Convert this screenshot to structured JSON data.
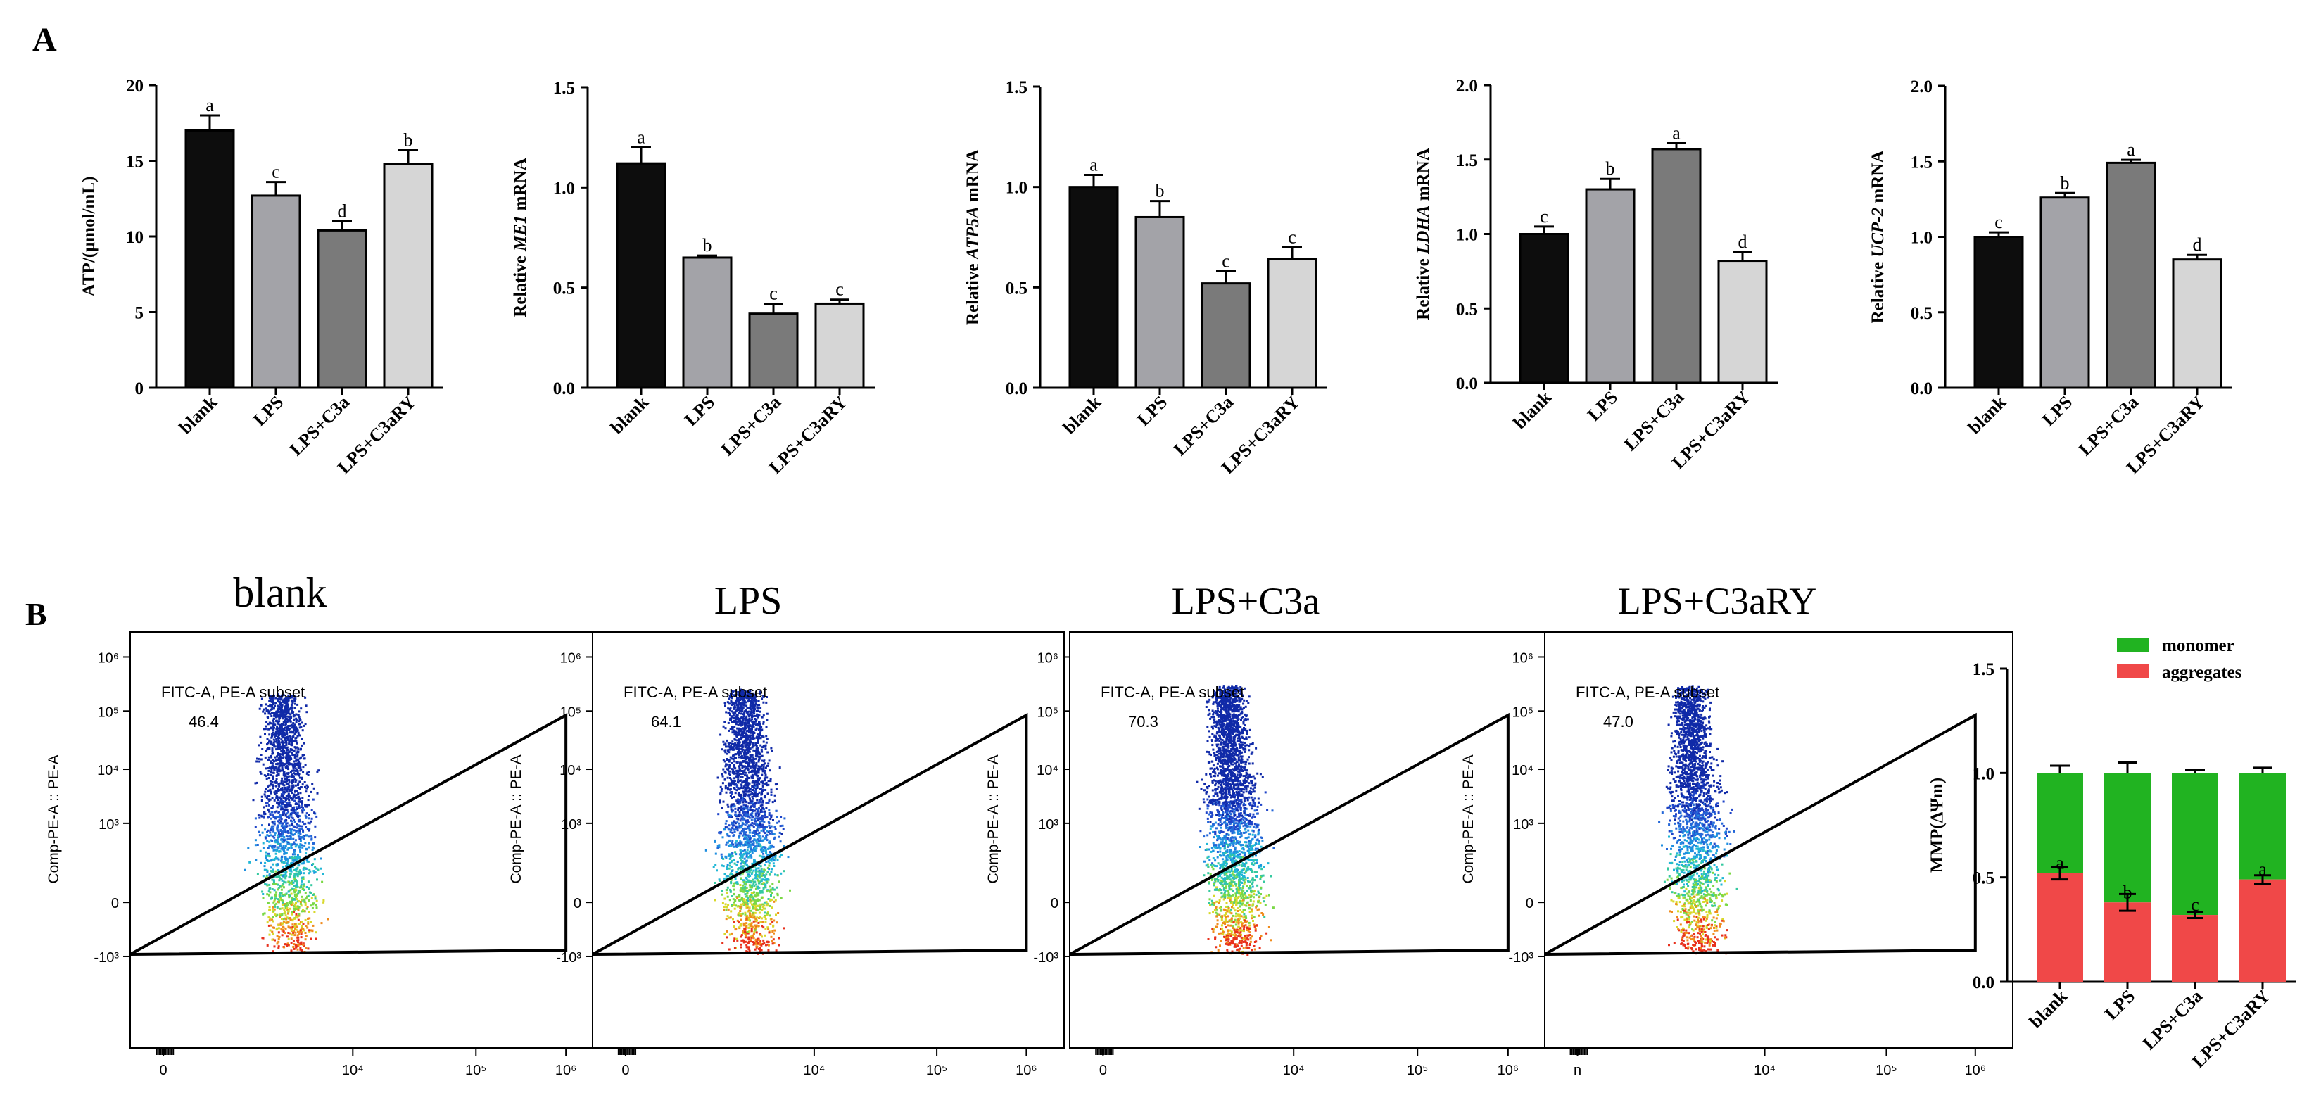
{
  "panel_labels": {
    "a": "A",
    "b": "B"
  },
  "colors": {
    "blank": "#0d0d0d",
    "LPS": "#a3a3a8",
    "LPS+C3a": "#7a7a7a",
    "LPS+C3aRY": "#d6d6d6",
    "monomer": "#21b321",
    "aggregates": "#f04848"
  },
  "chart_data": [
    {
      "type": "bar",
      "panel": "A",
      "categories": [
        "blank",
        "LPS",
        "LPS+C3a",
        "LPS+C3aRY"
      ],
      "values": [
        17.0,
        12.7,
        10.4,
        14.8
      ],
      "errors": [
        1.0,
        0.9,
        0.6,
        0.9
      ],
      "letters": [
        "a",
        "c",
        "d",
        "b"
      ],
      "ylabel": "ATP/(μmol/mL)",
      "ylim": [
        0,
        20
      ],
      "yticks": [
        "0",
        "5",
        "10",
        "15",
        "20"
      ]
    },
    {
      "type": "bar",
      "panel": "A",
      "categories": [
        "blank",
        "LPS",
        "LPS+C3a",
        "LPS+C3aRY"
      ],
      "values": [
        1.12,
        0.65,
        0.37,
        0.42
      ],
      "errors": [
        0.08,
        0.01,
        0.05,
        0.02
      ],
      "letters": [
        "a",
        "b",
        "c",
        "c"
      ],
      "ylabel": {
        "pre": "Relative ",
        "gene": "ME1",
        "post": " mRNA"
      },
      "ylim": [
        0,
        1.5
      ],
      "yticks": [
        "0.0",
        "0.5",
        "1.0",
        "1.5"
      ]
    },
    {
      "type": "bar",
      "panel": "A",
      "categories": [
        "blank",
        "LPS",
        "LPS+C3a",
        "LPS+C3aRY"
      ],
      "values": [
        1.0,
        0.85,
        0.52,
        0.64
      ],
      "errors": [
        0.06,
        0.08,
        0.06,
        0.06
      ],
      "letters": [
        "a",
        "b",
        "c",
        "c"
      ],
      "ylabel": {
        "pre": "Relative ",
        "gene": "ATP5A",
        "post": " mRNA"
      },
      "ylim": [
        0,
        1.5
      ],
      "yticks": [
        "0.0",
        "0.5",
        "1.0",
        "1.5"
      ]
    },
    {
      "type": "bar",
      "panel": "A",
      "categories": [
        "blank",
        "LPS",
        "LPS+C3a",
        "LPS+C3aRY"
      ],
      "values": [
        1.0,
        1.3,
        1.57,
        0.82
      ],
      "errors": [
        0.05,
        0.07,
        0.04,
        0.06
      ],
      "letters": [
        "c",
        "b",
        "a",
        "d"
      ],
      "ylabel": {
        "pre": "Relative ",
        "gene": "LDHA",
        "post": " mRNA"
      },
      "ylim": [
        0,
        2.0
      ],
      "yticks": [
        "0.0",
        "0.5",
        "1.0",
        "1.5",
        "2.0"
      ]
    },
    {
      "type": "bar",
      "panel": "A",
      "categories": [
        "blank",
        "LPS",
        "LPS+C3a",
        "LPS+C3aRY"
      ],
      "values": [
        1.0,
        1.26,
        1.49,
        0.85
      ],
      "errors": [
        0.03,
        0.03,
        0.02,
        0.03
      ],
      "letters": [
        "c",
        "b",
        "a",
        "d"
      ],
      "ylabel": {
        "pre": "Relative ",
        "gene": "UCP-2",
        "post": " mRNA"
      },
      "ylim": [
        0,
        2.0
      ],
      "yticks": [
        "0.0",
        "0.5",
        "1.0",
        "1.5",
        "2.0"
      ]
    },
    {
      "type": "scatter",
      "panel": "B",
      "title": "blank",
      "gate_label": "FITC-A, PE-A subset",
      "gate_value": "46.4",
      "ylabel": "Comp-PE-A :: PE-A",
      "y_tick_labels": [
        "10⁶",
        "10⁵",
        "10⁴",
        "10³",
        "0",
        "-10³"
      ],
      "x_tick_labels": [
        "0",
        "10⁴",
        "10⁵",
        "10⁶"
      ]
    },
    {
      "type": "scatter",
      "panel": "B",
      "title": "LPS",
      "gate_label": "FITC-A, PE-A subset",
      "gate_value": "64.1",
      "ylabel": "Comp-PE-A :: PE-A",
      "y_tick_labels": [
        "10⁶",
        "10⁵",
        "10⁴",
        "10³",
        "0",
        "-10³"
      ],
      "x_tick_labels": [
        "0",
        "10⁴",
        "10⁵",
        "10⁶"
      ]
    },
    {
      "type": "scatter",
      "panel": "B",
      "title": "LPS+C3a",
      "gate_label": "FITC-A, PE-A subset",
      "gate_value": "70.3",
      "ylabel": "Comp-PE-A :: PE-A",
      "y_tick_labels": [
        "10⁶",
        "10⁵",
        "10⁴",
        "10³",
        "0",
        "-10³"
      ],
      "x_tick_labels": [
        "0",
        "10⁴",
        "10⁵",
        "10⁶"
      ]
    },
    {
      "type": "scatter",
      "panel": "B",
      "title": "LPS+C3aRY",
      "gate_label": "FITC-A, PE-A subset",
      "gate_value": "47.0",
      "ylabel": "Comp-PE-A :: PE-A",
      "y_tick_labels": [
        "10⁶",
        "10⁵",
        "10⁴",
        "10³",
        "0",
        "-10³"
      ],
      "x_tick_labels": [
        "n",
        "10⁴",
        "10⁵",
        "10⁶"
      ]
    },
    {
      "type": "bar",
      "stacked": true,
      "panel": "B",
      "categories": [
        "blank",
        "LPS",
        "LPS+C3a",
        "LPS+C3aRY"
      ],
      "series": [
        {
          "name": "aggregates",
          "values": [
            0.52,
            0.38,
            0.32,
            0.49
          ],
          "errors": [
            0.03,
            0.04,
            0.015,
            0.02
          ]
        },
        {
          "name": "monomer",
          "values": [
            0.48,
            0.62,
            0.68,
            0.51
          ],
          "errors": [
            0.035,
            0.05,
            0.015,
            0.025
          ]
        }
      ],
      "letters": [
        "a",
        "b",
        "c",
        "a"
      ],
      "ylabel": "MMP(ΔΨm)",
      "ylim": [
        0,
        1.5
      ],
      "yticks": [
        "0.0",
        "0.5",
        "1.0",
        "1.5"
      ],
      "legend_position": "top"
    }
  ]
}
